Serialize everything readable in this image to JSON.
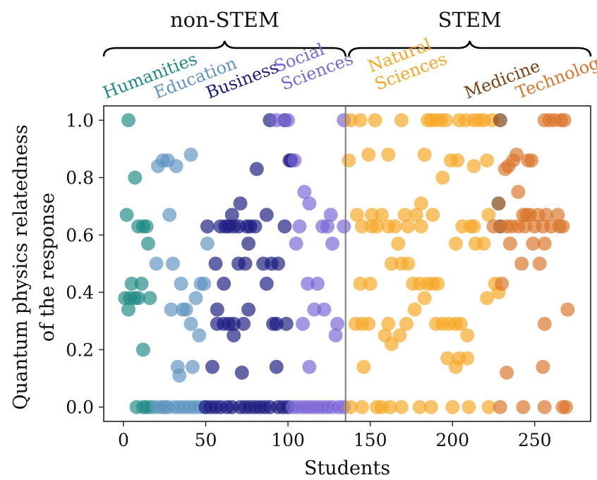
{
  "chart_data": {
    "type": "scatter",
    "xlabel": "Students",
    "ylabel_lines": [
      "Quantum physics relatedness",
      "of the response"
    ],
    "xlim": [
      -12,
      284
    ],
    "ylim": [
      -0.05,
      1.05
    ],
    "xticks": [
      0,
      50,
      100,
      150,
      200,
      250
    ],
    "yticks": [
      0.0,
      0.2,
      0.4,
      0.6,
      0.8,
      1.0
    ],
    "xtick_labels": [
      "0",
      "50",
      "100",
      "150",
      "200",
      "250"
    ],
    "ytick_labels": [
      "0.0",
      "0.2",
      "0.4",
      "0.6",
      "0.8",
      "1.0"
    ],
    "divider_x": 135,
    "groups": [
      {
        "label": "non-STEM",
        "x_range": [
          -12,
          135
        ]
      },
      {
        "label": "STEM",
        "x_range": [
          137,
          284
        ]
      }
    ],
    "fields": [
      {
        "label_lines": [
          "Humanities"
        ],
        "color": "#1f8a85"
      },
      {
        "label_lines": [
          "Education"
        ],
        "color": "#5f94c0"
      },
      {
        "label_lines": [
          "Business"
        ],
        "color": "#1a1a80"
      },
      {
        "label_lines": [
          "Social",
          "Sciences"
        ],
        "color": "#7a66d6"
      },
      {
        "label_lines": [
          "Natural",
          "Sciences"
        ],
        "color": "#f6a623"
      },
      {
        "label_lines": [
          "Medicine"
        ],
        "color": "#7a4010"
      },
      {
        "label_lines": [
          "Technology"
        ],
        "color": "#d9742a"
      }
    ],
    "series": [
      {
        "color": "#1f8a85",
        "points": [
          [
            3,
            1.0
          ],
          [
            2,
            0.67
          ],
          [
            7,
            0.8
          ],
          [
            1,
            0.38
          ],
          [
            4,
            0.38
          ],
          [
            7,
            0.38
          ],
          [
            3,
            0.34
          ],
          [
            5,
            0.43
          ],
          [
            11,
            0.43
          ],
          [
            9,
            0.38
          ],
          [
            16,
            0.38
          ],
          [
            9,
            0.63
          ],
          [
            12,
            0.63
          ],
          [
            14,
            0.63
          ],
          [
            15,
            0.57
          ],
          [
            12,
            0.2
          ],
          [
            8,
            0.0
          ],
          [
            12,
            0.0
          ],
          [
            14,
            0.0
          ],
          [
            17,
            0.0
          ]
        ]
      },
      {
        "color": "#5f94c0",
        "points": [
          [
            24,
            0.86
          ],
          [
            27,
            0.86
          ],
          [
            21,
            0.84
          ],
          [
            32,
            0.84
          ],
          [
            41,
            0.88
          ],
          [
            28,
            0.67
          ],
          [
            20,
            0.5
          ],
          [
            30,
            0.5
          ],
          [
            35,
            0.43
          ],
          [
            47,
            0.43
          ],
          [
            49,
            0.43
          ],
          [
            29,
            0.34
          ],
          [
            36,
            0.34
          ],
          [
            38,
            0.34
          ],
          [
            44,
            0.38
          ],
          [
            41,
            0.29
          ],
          [
            46,
            0.25
          ],
          [
            51,
            0.57
          ],
          [
            33,
            0.14
          ],
          [
            34,
            0.11
          ],
          [
            42,
            0.14
          ],
          [
            20,
            0.0
          ],
          [
            23,
            0.0
          ],
          [
            25,
            0.0
          ],
          [
            27,
            0.0
          ],
          [
            31,
            0.0
          ],
          [
            34,
            0.0
          ],
          [
            37,
            0.0
          ],
          [
            40,
            0.0
          ],
          [
            43,
            0.0
          ],
          [
            46,
            0.0
          ],
          [
            49,
            0.0
          ]
        ]
      },
      {
        "color": "#1a1a80",
        "points": [
          [
            89,
            1.0
          ],
          [
            98,
            1.0
          ],
          [
            101,
            0.86
          ],
          [
            102,
            0.86
          ],
          [
            81,
            0.83
          ],
          [
            71,
            0.71
          ],
          [
            66,
            0.67
          ],
          [
            87,
            0.67
          ],
          [
            51,
            0.63
          ],
          [
            59,
            0.63
          ],
          [
            62,
            0.63
          ],
          [
            64,
            0.63
          ],
          [
            67,
            0.63
          ],
          [
            70,
            0.63
          ],
          [
            75,
            0.63
          ],
          [
            77,
            0.63
          ],
          [
            80,
            0.63
          ],
          [
            98,
            0.63
          ],
          [
            76,
            0.57
          ],
          [
            56,
            0.5
          ],
          [
            70,
            0.5
          ],
          [
            74,
            0.5
          ],
          [
            85,
            0.5
          ],
          [
            90,
            0.5
          ],
          [
            94,
            0.5
          ],
          [
            61,
            0.43
          ],
          [
            87,
            0.43
          ],
          [
            57,
            0.34
          ],
          [
            76,
            0.34
          ],
          [
            57,
            0.29
          ],
          [
            61,
            0.29
          ],
          [
            64,
            0.29
          ],
          [
            67,
            0.29
          ],
          [
            73,
            0.29
          ],
          [
            91,
            0.29
          ],
          [
            93,
            0.29
          ],
          [
            99,
            0.29
          ],
          [
            67,
            0.25
          ],
          [
            54,
            0.14
          ],
          [
            72,
            0.12
          ],
          [
            93,
            0.14
          ],
          [
            50,
            0.0
          ],
          [
            53,
            0.0
          ],
          [
            56,
            0.0
          ],
          [
            59,
            0.0
          ],
          [
            63,
            0.0
          ],
          [
            66,
            0.0
          ],
          [
            71,
            0.0
          ],
          [
            74,
            0.0
          ],
          [
            77,
            0.0
          ],
          [
            80,
            0.0
          ],
          [
            83,
            0.0
          ],
          [
            86,
            0.0
          ],
          [
            89,
            0.0
          ],
          [
            94,
            0.0
          ],
          [
            97,
            0.0
          ],
          [
            100,
            0.0
          ]
        ]
      },
      {
        "color": "#7a66d6",
        "points": [
          [
            93,
            1.0
          ],
          [
            100,
            1.0
          ],
          [
            134,
            1.0
          ],
          [
            104,
            0.86
          ],
          [
            110,
            0.75
          ],
          [
            113,
            0.71
          ],
          [
            126,
            0.67
          ],
          [
            107,
            0.63
          ],
          [
            121,
            0.63
          ],
          [
            124,
            0.63
          ],
          [
            134,
            0.63
          ],
          [
            105,
            0.57
          ],
          [
            127,
            0.57
          ],
          [
            112,
            0.43
          ],
          [
            118,
            0.43
          ],
          [
            116,
            0.34
          ],
          [
            122,
            0.34
          ],
          [
            130,
            0.29
          ],
          [
            109,
            0.29
          ],
          [
            129,
            0.25
          ],
          [
            113,
            0.14
          ],
          [
            103,
            0.0
          ],
          [
            106,
            0.0
          ],
          [
            109,
            0.0
          ],
          [
            112,
            0.0
          ],
          [
            115,
            0.0
          ],
          [
            118,
            0.0
          ],
          [
            121,
            0.0
          ],
          [
            124,
            0.0
          ],
          [
            127,
            0.0
          ],
          [
            131,
            0.0
          ],
          [
            134,
            0.0
          ]
        ]
      },
      {
        "color": "#f6a623",
        "points": [
          [
            138,
            1.0
          ],
          [
            144,
            1.0
          ],
          [
            153,
            1.0
          ],
          [
            169,
            1.0
          ],
          [
            185,
            1.0
          ],
          [
            187,
            1.0
          ],
          [
            190,
            1.0
          ],
          [
            193,
            1.0
          ],
          [
            196,
            1.0
          ],
          [
            204,
            1.0
          ],
          [
            208,
            1.0
          ],
          [
            213,
            1.0
          ],
          [
            216,
            1.0
          ],
          [
            219,
            1.0
          ],
          [
            224,
            1.0
          ],
          [
            137,
            0.86
          ],
          [
            149,
            0.88
          ],
          [
            161,
            0.88
          ],
          [
            183,
            0.88
          ],
          [
            199,
            0.86
          ],
          [
            203,
            0.86
          ],
          [
            213,
            0.84
          ],
          [
            221,
            0.86
          ],
          [
            194,
            0.8
          ],
          [
            181,
            0.71
          ],
          [
            142,
            0.67
          ],
          [
            151,
            0.67
          ],
          [
            157,
            0.67
          ],
          [
            171,
            0.67
          ],
          [
            178,
            0.67
          ],
          [
            188,
            0.67
          ],
          [
            222,
            0.67
          ],
          [
            145,
            0.63
          ],
          [
            151,
            0.63
          ],
          [
            154,
            0.63
          ],
          [
            161,
            0.63
          ],
          [
            165,
            0.63
          ],
          [
            173,
            0.63
          ],
          [
            181,
            0.63
          ],
          [
            206,
            0.63
          ],
          [
            211,
            0.63
          ],
          [
            213,
            0.63
          ],
          [
            167,
            0.57
          ],
          [
            202,
            0.57
          ],
          [
            214,
            0.57
          ],
          [
            219,
            0.57
          ],
          [
            163,
            0.5
          ],
          [
            169,
            0.5
          ],
          [
            173,
            0.5
          ],
          [
            144,
            0.43
          ],
          [
            150,
            0.43
          ],
          [
            176,
            0.43
          ],
          [
            180,
            0.43
          ],
          [
            185,
            0.43
          ],
          [
            188,
            0.43
          ],
          [
            191,
            0.43
          ],
          [
            226,
            0.43
          ],
          [
            183,
            0.38
          ],
          [
            221,
            0.38
          ],
          [
            228,
            0.4
          ],
          [
            141,
            0.29
          ],
          [
            145,
            0.29
          ],
          [
            149,
            0.29
          ],
          [
            161,
            0.29
          ],
          [
            172,
            0.29
          ],
          [
            190,
            0.29
          ],
          [
            194,
            0.29
          ],
          [
            198,
            0.29
          ],
          [
            202,
            0.29
          ],
          [
            205,
            0.29
          ],
          [
            159,
            0.25
          ],
          [
            168,
            0.25
          ],
          [
            163,
            0.22
          ],
          [
            209,
            0.25
          ],
          [
            177,
            0.34
          ],
          [
            197,
            0.17
          ],
          [
            202,
            0.14
          ],
          [
            204,
            0.17
          ],
          [
            209,
            0.17
          ],
          [
            146,
            0.14
          ],
          [
            138,
            0.0
          ],
          [
            145,
            0.0
          ],
          [
            154,
            0.0
          ],
          [
            157,
            0.0
          ],
          [
            162,
            0.0
          ],
          [
            169,
            0.0
          ],
          [
            180,
            0.0
          ],
          [
            187,
            0.0
          ],
          [
            200,
            0.0
          ],
          [
            210,
            0.0
          ],
          [
            222,
            0.0
          ]
        ]
      },
      {
        "color": "#7a4010",
        "points": [
          [
            229,
            1.0
          ],
          [
            228,
            0.71
          ],
          [
            229,
            0.63
          ]
        ]
      },
      {
        "color": "#d9742a",
        "points": [
          [
            256,
            1.0
          ],
          [
            259,
            1.0
          ],
          [
            262,
            1.0
          ],
          [
            266,
            1.0
          ],
          [
            268,
            1.0
          ],
          [
            239,
            0.88
          ],
          [
            237,
            0.86
          ],
          [
            246,
            0.86
          ],
          [
            248,
            0.86
          ],
          [
            232,
            0.83
          ],
          [
            234,
            0.84
          ],
          [
            240,
            0.75
          ],
          [
            243,
            0.67
          ],
          [
            245,
            0.67
          ],
          [
            247,
            0.67
          ],
          [
            252,
            0.67
          ],
          [
            257,
            0.67
          ],
          [
            264,
            0.67
          ],
          [
            225,
            0.63
          ],
          [
            233,
            0.63
          ],
          [
            236,
            0.63
          ],
          [
            240,
            0.63
          ],
          [
            244,
            0.63
          ],
          [
            250,
            0.63
          ],
          [
            255,
            0.63
          ],
          [
            260,
            0.63
          ],
          [
            265,
            0.63
          ],
          [
            267,
            0.63
          ],
          [
            235,
            0.57
          ],
          [
            249,
            0.57
          ],
          [
            256,
            0.57
          ],
          [
            242,
            0.5
          ],
          [
            253,
            0.5
          ],
          [
            230,
            0.43
          ],
          [
            270,
            0.34
          ],
          [
            256,
            0.29
          ],
          [
            233,
            0.12
          ],
          [
            255,
            0.14
          ],
          [
            229,
            0.0
          ],
          [
            243,
            0.0
          ],
          [
            256,
            0.0
          ],
          [
            267,
            0.0
          ],
          [
            269,
            0.0
          ]
        ]
      }
    ]
  }
}
